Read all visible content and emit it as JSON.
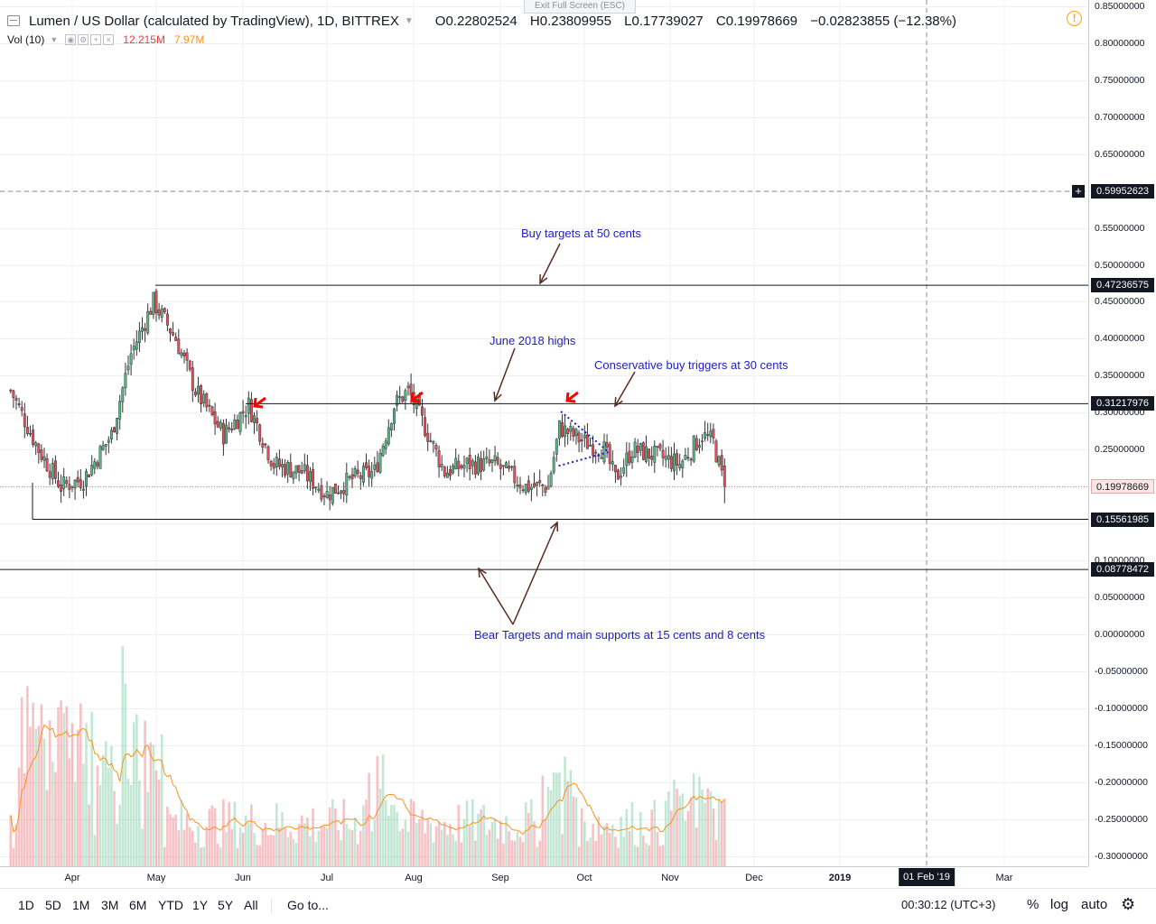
{
  "legend": {
    "title": "Lumen / US Dollar (calculated by TradingView), 1D, BITTREX",
    "open_key": "O",
    "open": "0.22802524",
    "high_key": "H",
    "high": "0.23809955",
    "low_key": "L",
    "low": "0.17739027",
    "close_key": "C",
    "close": "0.19978669",
    "change": "−0.02823855 (−12.38%)"
  },
  "volume": {
    "label": "Vol (10)",
    "value": "12.215M",
    "ma": "7.97M"
  },
  "exit_fullscreen": "Exit Full Screen (ESC)",
  "price_axis": {
    "ticks": [
      "0.85000000",
      "0.80000000",
      "0.75000000",
      "0.70000000",
      "0.65000000",
      "0.55000000",
      "0.50000000",
      "0.45000000",
      "0.40000000",
      "0.35000000",
      "0.30000000",
      "0.25000000",
      "0.10000000",
      "0.05000000",
      "0.00000000",
      "-0.05000000",
      "-0.10000000",
      "-0.15000000",
      "-0.20000000",
      "-0.25000000",
      "-0.30000000"
    ],
    "crosshair_value": "0.59952623",
    "levels": [
      "0.47236575",
      "0.31217976",
      "0.15561985",
      "0.08778472"
    ],
    "last_price": "0.19978669"
  },
  "time_axis": {
    "labels": [
      "Apr",
      "May",
      "Jun",
      "Jul",
      "Aug",
      "Sep",
      "Oct",
      "Nov",
      "Dec",
      "2019",
      "Mar"
    ],
    "crosshair_date": "01 Feb '19"
  },
  "annotations": {
    "buy_targets": "Buy targets at 50 cents",
    "june_highs": "June 2018 highs",
    "conservative": "Conservative buy triggers at 30 cents",
    "bear_targets": "Bear Targets and main supports at 15 cents and 8 cents"
  },
  "toolbar": {
    "ranges": [
      "1D",
      "5D",
      "1M",
      "3M",
      "6M",
      "YTD",
      "1Y",
      "5Y",
      "All"
    ],
    "goto": "Go to...",
    "clock": "00:30:12 (UTC+3)",
    "percent": "%",
    "log": "log",
    "auto": "auto"
  },
  "colors": {
    "up": "#53b987",
    "down": "#eb4d5c",
    "annotation": "#1d1dc9",
    "arrow_red": "#ff0000",
    "arrow_brown": "#5a2a22",
    "volume_ma": "#f7931a",
    "alert": "#f7a21b"
  },
  "chart_data": {
    "type": "candlestick",
    "symbol": "XLMUSD",
    "interval": "1D",
    "ylim": [
      -0.32,
      0.86
    ],
    "horizontal_levels": [
      0.47236575,
      0.31217976,
      0.15561985,
      0.08778472
    ],
    "last_close": 0.19978669,
    "approx_close_path": [
      {
        "date": "2018-03-10",
        "close": 0.33
      },
      {
        "date": "2018-03-20",
        "close": 0.25
      },
      {
        "date": "2018-03-28",
        "close": 0.2
      },
      {
        "date": "2018-04-05",
        "close": 0.21
      },
      {
        "date": "2018-04-15",
        "close": 0.27
      },
      {
        "date": "2018-04-22",
        "close": 0.38
      },
      {
        "date": "2018-04-30",
        "close": 0.45
      },
      {
        "date": "2018-05-08",
        "close": 0.4
      },
      {
        "date": "2018-05-15",
        "close": 0.33
      },
      {
        "date": "2018-05-25",
        "close": 0.27
      },
      {
        "date": "2018-06-03",
        "close": 0.31
      },
      {
        "date": "2018-06-12",
        "close": 0.23
      },
      {
        "date": "2018-06-22",
        "close": 0.22
      },
      {
        "date": "2018-07-01",
        "close": 0.19
      },
      {
        "date": "2018-07-10",
        "close": 0.21
      },
      {
        "date": "2018-07-18",
        "close": 0.22
      },
      {
        "date": "2018-07-25",
        "close": 0.31
      },
      {
        "date": "2018-07-30",
        "close": 0.33
      },
      {
        "date": "2018-08-05",
        "close": 0.28
      },
      {
        "date": "2018-08-12",
        "close": 0.22
      },
      {
        "date": "2018-08-20",
        "close": 0.23
      },
      {
        "date": "2018-08-30",
        "close": 0.23
      },
      {
        "date": "2018-09-10",
        "close": 0.2
      },
      {
        "date": "2018-09-18",
        "close": 0.2
      },
      {
        "date": "2018-09-22",
        "close": 0.28
      },
      {
        "date": "2018-10-01",
        "close": 0.26
      },
      {
        "date": "2018-10-08",
        "close": 0.25
      },
      {
        "date": "2018-10-12",
        "close": 0.21
      },
      {
        "date": "2018-10-18",
        "close": 0.25
      },
      {
        "date": "2018-10-28",
        "close": 0.24
      },
      {
        "date": "2018-11-04",
        "close": 0.23
      },
      {
        "date": "2018-11-12",
        "close": 0.27
      },
      {
        "date": "2018-11-16",
        "close": 0.26
      },
      {
        "date": "2018-11-20",
        "close": 0.19978669
      }
    ]
  }
}
